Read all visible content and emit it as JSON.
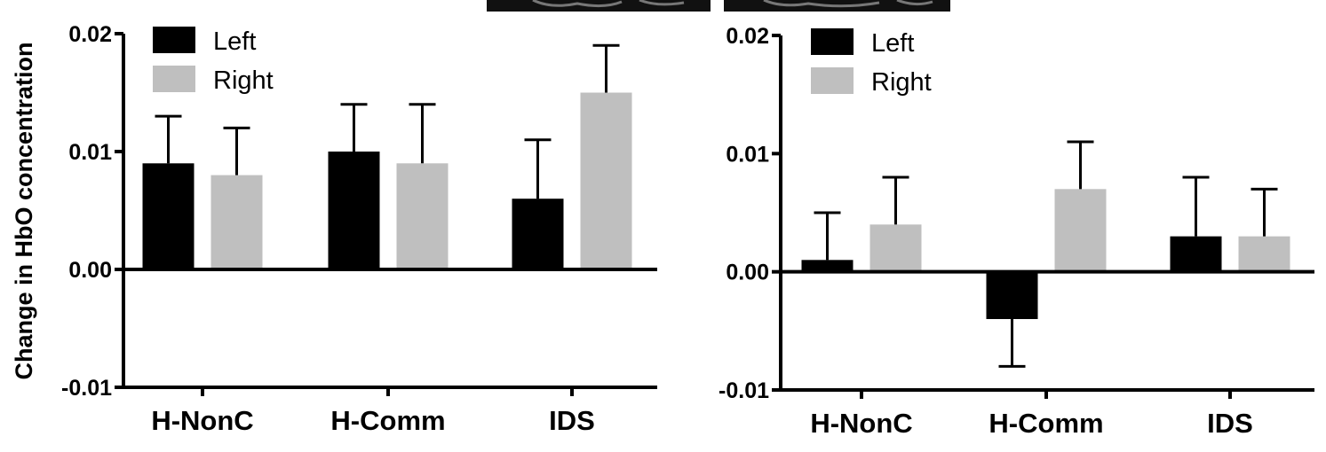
{
  "chart_data": [
    {
      "type": "bar",
      "categories": [
        "H-NonC",
        "H-Comm",
        "IDS"
      ],
      "series": [
        {
          "name": "Left",
          "color": "#000000",
          "values": [
            0.009,
            0.01,
            0.006
          ],
          "errors": [
            0.004,
            0.004,
            0.005
          ]
        },
        {
          "name": "Right",
          "color": "#bfbfbf",
          "values": [
            0.008,
            0.009,
            0.015
          ],
          "errors": [
            0.004,
            0.005,
            0.004
          ]
        }
      ],
      "yticks": [
        "0.02",
        "0.01",
        "0.00",
        "-0.01"
      ],
      "ytick_values": [
        0.02,
        0.01,
        0.0,
        -0.01
      ],
      "ylim": [
        -0.01,
        0.02
      ],
      "ylabel": "Change in HbO concentration",
      "legend_position": "top-left"
    },
    {
      "type": "bar",
      "categories": [
        "H-NonC",
        "H-Comm",
        "IDS"
      ],
      "series": [
        {
          "name": "Left",
          "color": "#000000",
          "values": [
            0.001,
            -0.004,
            0.003
          ],
          "errors": [
            0.004,
            0.004,
            0.005
          ]
        },
        {
          "name": "Right",
          "color": "#bfbfbf",
          "values": [
            0.004,
            0.007,
            0.003
          ],
          "errors": [
            0.004,
            0.004,
            0.004
          ]
        }
      ],
      "yticks": [
        "0.02",
        "0.01",
        "0.00",
        "-0.01"
      ],
      "ytick_values": [
        0.02,
        0.01,
        0.0,
        -0.01
      ],
      "ylim": [
        -0.01,
        0.02
      ],
      "ylabel": "",
      "legend_position": "top-left"
    }
  ]
}
